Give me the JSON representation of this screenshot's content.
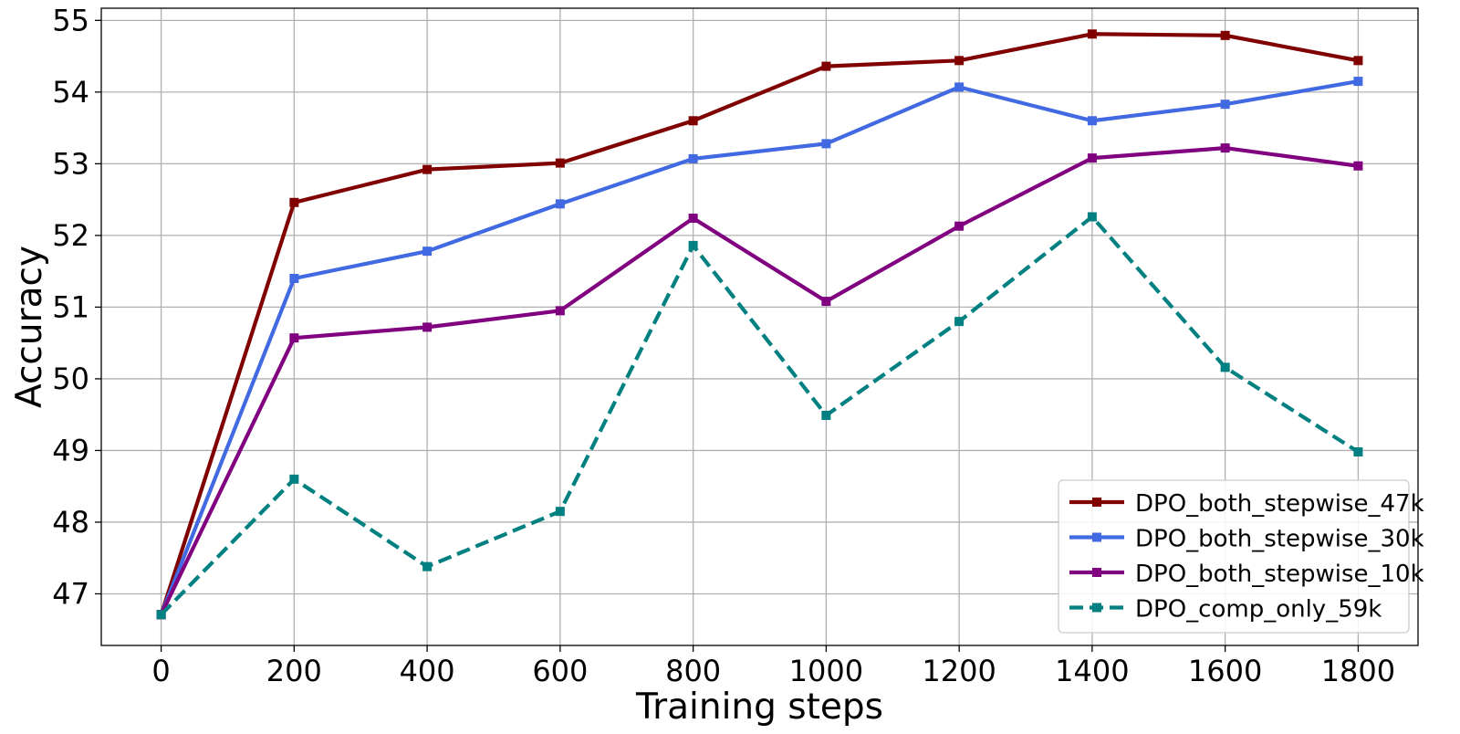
{
  "chart_data": {
    "type": "line",
    "xlabel": "Training steps",
    "ylabel": "Accuracy",
    "x": [
      0,
      200,
      400,
      600,
      800,
      1000,
      1200,
      1400,
      1600,
      1800
    ],
    "xticks": [
      0,
      200,
      400,
      600,
      800,
      1000,
      1200,
      1400,
      1600,
      1800
    ],
    "yticks": [
      47,
      48,
      49,
      50,
      51,
      52,
      53,
      54,
      55
    ],
    "xlim": [
      -90,
      1890
    ],
    "ylim": [
      46.28,
      55.17
    ],
    "grid": true,
    "legend_position": "lower-right",
    "series": [
      {
        "name": "DPO_both_stepwise_47k",
        "color": "#800000",
        "line_style": "solid",
        "marker": "square",
        "values": [
          46.71,
          52.46,
          52.92,
          53.01,
          53.6,
          54.36,
          54.44,
          54.81,
          54.79,
          54.44
        ]
      },
      {
        "name": "DPO_both_stepwise_30k",
        "color": "#4169E1",
        "line_style": "solid",
        "marker": "square",
        "values": [
          46.71,
          51.4,
          51.78,
          52.44,
          53.07,
          53.28,
          54.07,
          53.6,
          53.83,
          54.15
        ]
      },
      {
        "name": "DPO_both_stepwise_10k",
        "color": "#800080",
        "line_style": "solid",
        "marker": "square",
        "values": [
          46.71,
          50.57,
          50.72,
          50.95,
          52.24,
          51.08,
          52.13,
          53.08,
          53.22,
          52.97
        ]
      },
      {
        "name": "DPO_comp_only_59k",
        "color": "#008080",
        "line_style": "dashed",
        "marker": "square",
        "values": [
          46.71,
          48.6,
          47.38,
          48.15,
          51.86,
          49.49,
          50.8,
          52.26,
          50.16,
          48.98
        ]
      }
    ]
  }
}
